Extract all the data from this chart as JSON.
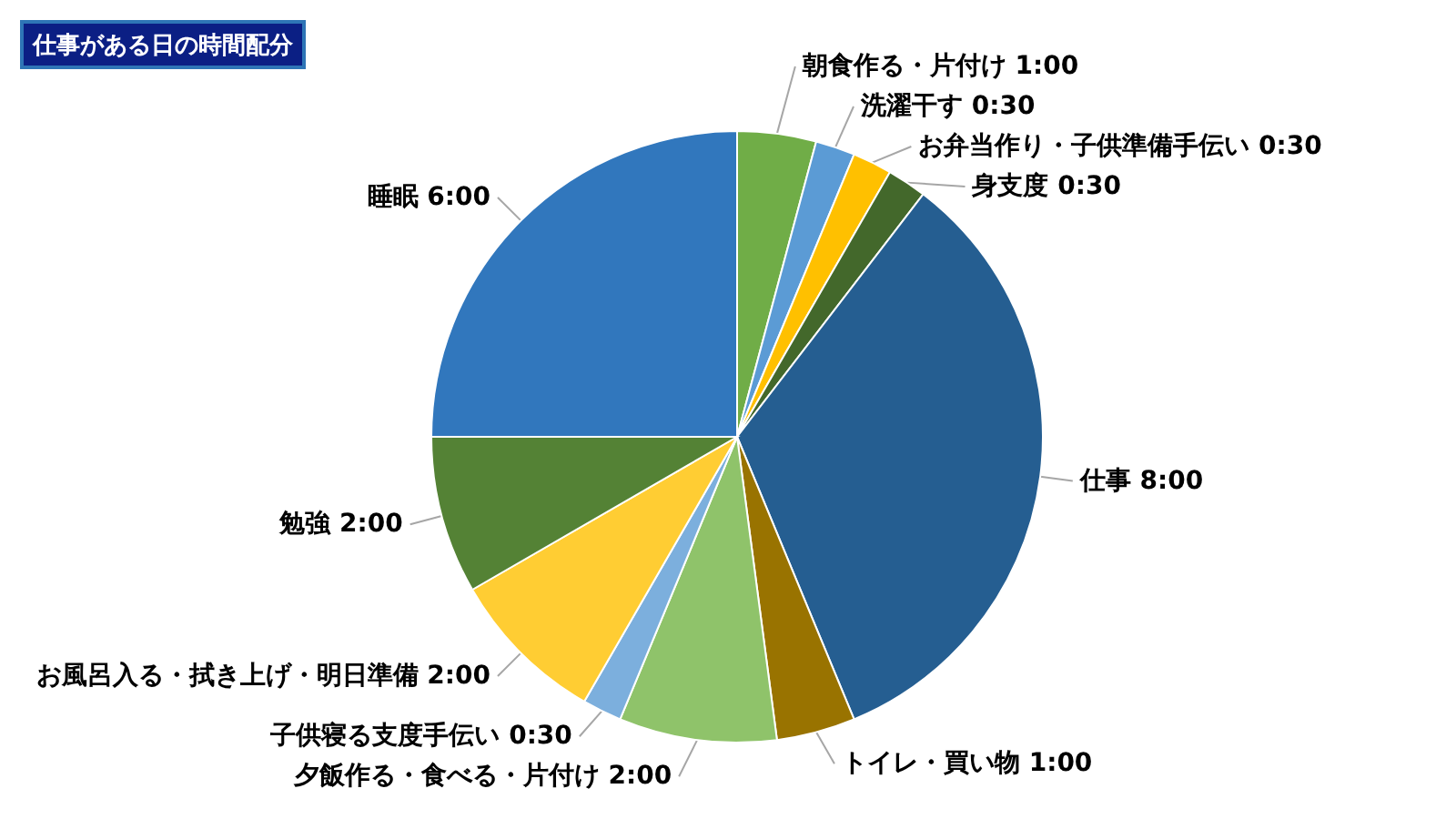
{
  "chart_data": {
    "type": "pie",
    "title": "仕事がある日の時間配分",
    "categories": [
      "朝食作る・片付け",
      "洗濯干す",
      "お弁当作り・子供準備手伝い",
      "身支度",
      "仕事",
      "トイレ・買い物",
      "夕飯作る・食べる・片付け",
      "子供寝る支度手伝い",
      "お風呂入る・拭き上げ・明日準備",
      "勉強",
      "睡眠"
    ],
    "values": [
      1,
      0.5,
      0.5,
      0.5,
      8,
      1,
      2,
      0.5,
      2,
      2,
      6
    ],
    "value_labels": [
      "1:00",
      "0:30",
      "0:30",
      "0:30",
      "8:00",
      "1:00",
      "2:00",
      "0:30",
      "2:00",
      "2:00",
      "6:00"
    ],
    "colors": [
      "#70ad47",
      "#5b9bd5",
      "#ffc000",
      "#43682b",
      "#255e91",
      "#997300",
      "#8fc36a",
      "#7cafdd",
      "#ffcd33",
      "#548235",
      "#3177bd"
    ]
  }
}
